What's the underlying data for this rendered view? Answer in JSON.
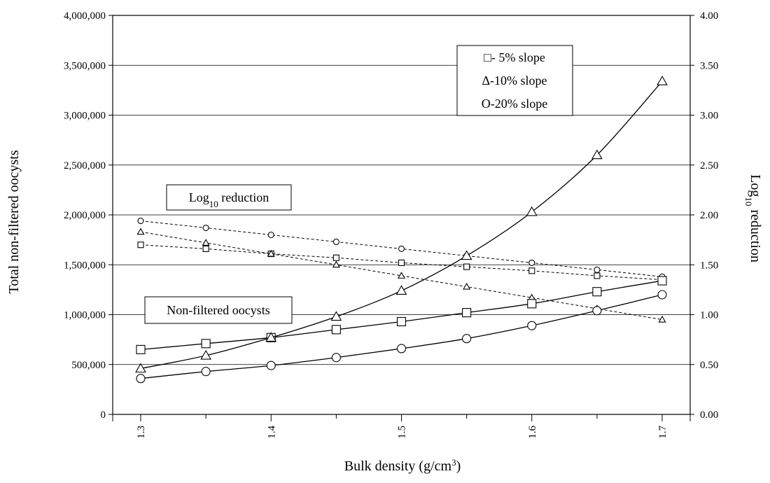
{
  "chart_data": {
    "type": "line",
    "xlabel": "Bulk density (g/cm",
    "xlabel_sup": "3",
    "xlabel_close": ")",
    "ylabel_left": "Total non-filtered oocysts",
    "ylabel_right_base": "Log",
    "ylabel_right_sub": "10",
    "ylabel_right_rest": " reduction",
    "x_ticks": [
      "1.3",
      "1.4",
      "1.5",
      "1.6",
      "1.7"
    ],
    "xlim": [
      1.3,
      1.7
    ],
    "y_left_ticks": [
      "0",
      "500,000",
      "1,000,000",
      "1,500,000",
      "2,000,000",
      "2,500,000",
      "3,000,000",
      "3,500,000",
      "4,000,000"
    ],
    "ylim_left": [
      0,
      4000000
    ],
    "y_right_ticks": [
      "0.00",
      "0.50",
      "1.00",
      "1.50",
      "2.00",
      "2.50",
      "3.00",
      "3.50",
      "4.00"
    ],
    "ylim_right": [
      0,
      4
    ],
    "grid": "horizontal",
    "x": [
      1.3,
      1.35,
      1.4,
      1.45,
      1.5,
      1.55,
      1.6,
      1.65,
      1.7
    ],
    "oocyst_series": [
      {
        "marker": "square",
        "axis": "left",
        "values": [
          650000,
          710000,
          770000,
          850000,
          930000,
          1020000,
          1110000,
          1230000,
          1340000
        ]
      },
      {
        "marker": "triangle",
        "axis": "left",
        "values": [
          460000,
          590000,
          770000,
          980000,
          1240000,
          1590000,
          2030000,
          2600000,
          3340000
        ]
      },
      {
        "marker": "circle",
        "axis": "left",
        "values": [
          360000,
          430000,
          490000,
          570000,
          660000,
          760000,
          890000,
          1040000,
          1200000
        ]
      }
    ],
    "log_series": [
      {
        "marker": "square",
        "axis": "right",
        "values": [
          1.7,
          1.66,
          1.61,
          1.57,
          1.52,
          1.48,
          1.44,
          1.39,
          1.35
        ]
      },
      {
        "marker": "triangle",
        "axis": "right",
        "values": [
          1.83,
          1.72,
          1.61,
          1.5,
          1.39,
          1.28,
          1.17,
          1.06,
          0.95
        ]
      },
      {
        "marker": "circle",
        "axis": "right",
        "values": [
          1.94,
          1.87,
          1.8,
          1.73,
          1.66,
          1.59,
          1.52,
          1.45,
          1.38
        ]
      }
    ],
    "legend": {
      "position": "top-right",
      "entries": [
        "□-  5% slope",
        "Δ-10% slope",
        "O-20% slope"
      ]
    },
    "annotations": {
      "log_reduction_base": "Log",
      "log_reduction_sub": "10",
      "log_reduction_rest": " reduction",
      "non_filtered": "Non-filtered oocysts"
    }
  }
}
